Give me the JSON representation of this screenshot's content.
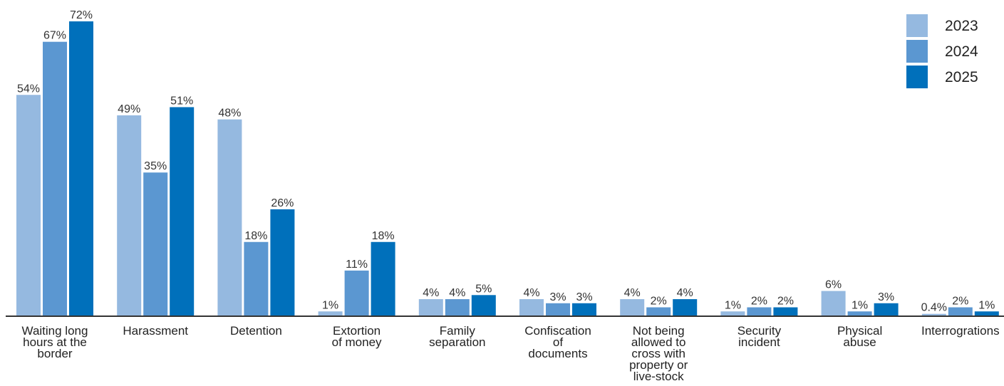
{
  "chart_data": {
    "type": "bar",
    "categories": [
      [
        "Waiting long",
        "hours at the",
        "border"
      ],
      [
        "Harassment"
      ],
      [
        "Detention"
      ],
      [
        "Extortion",
        "of money"
      ],
      [
        "Family",
        "separation"
      ],
      [
        "Confiscation",
        "of",
        "documents"
      ],
      [
        "Not being",
        "allowed to",
        "cross with",
        "property or",
        "live-stock"
      ],
      [
        "Security",
        "incident"
      ],
      [
        "Physical",
        "abuse"
      ],
      [
        "Interrograt­ions"
      ]
    ],
    "series": [
      {
        "name": "2023",
        "color": "#95b9e0",
        "values": [
          54,
          49,
          48,
          1,
          4,
          4,
          4,
          1,
          6,
          0.4
        ],
        "labels": [
          "54%",
          "49%",
          "48%",
          "1%",
          "4%",
          "4%",
          "4%",
          "1%",
          "6%",
          "0.4%"
        ]
      },
      {
        "name": "2024",
        "color": "#5b97d1",
        "values": [
          67,
          35,
          18,
          11,
          4,
          3,
          2,
          2,
          1,
          2
        ],
        "labels": [
          "67%",
          "35%",
          "18%",
          "11%",
          "4%",
          "3%",
          "2%",
          "2%",
          "1%",
          "2%"
        ]
      },
      {
        "name": "2025",
        "color": "#0070bb",
        "values": [
          72,
          51,
          26,
          18,
          5,
          3,
          4,
          2,
          3,
          1
        ],
        "labels": [
          "72%",
          "51%",
          "26%",
          "18%",
          "5%",
          "3%",
          "4%",
          "2%",
          "3%",
          "1%"
        ]
      }
    ],
    "ylim": [
      0,
      75
    ],
    "grid": false,
    "legend_position": "top-right",
    "axis_color": "#333333"
  }
}
